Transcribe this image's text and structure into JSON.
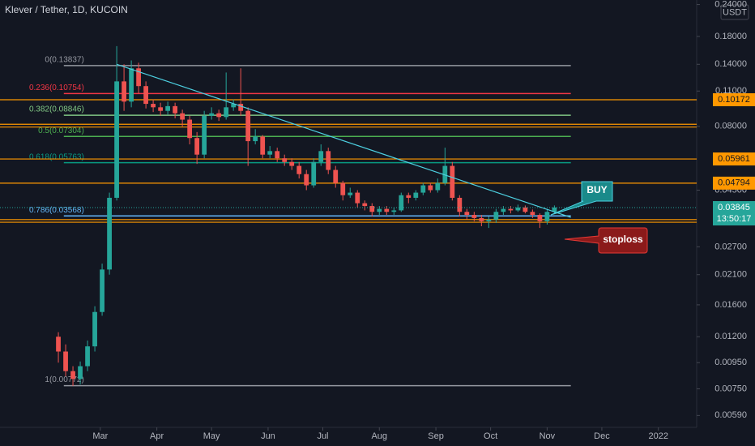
{
  "chart_data": {
    "type": "candlestick",
    "title": "Klever / Tether, 1D, KUCOIN",
    "currency": "USDT",
    "log_scale": true,
    "grid": false,
    "up_color": "#26a69a",
    "down_color": "#ef5350",
    "xlim": [
      4,
      386
    ],
    "xticks": [
      {
        "value": 59,
        "label": "Mar"
      },
      {
        "value": 90,
        "label": "Apr"
      },
      {
        "value": 120,
        "label": "May"
      },
      {
        "value": 151,
        "label": "Jun"
      },
      {
        "value": 181,
        "label": "Jul"
      },
      {
        "value": 212,
        "label": "Aug"
      },
      {
        "value": 243,
        "label": "Sep"
      },
      {
        "value": 273,
        "label": "Oct"
      },
      {
        "value": 304,
        "label": "Nov"
      },
      {
        "value": 334,
        "label": "Dec"
      },
      {
        "value": 365,
        "label": "2022"
      }
    ],
    "ylim": [
      0.0053,
      0.25
    ],
    "yticks": [
      {
        "value": 0.24,
        "label": "0.24000"
      },
      {
        "value": 0.18,
        "label": "0.18000"
      },
      {
        "value": 0.14,
        "label": "0.14000"
      },
      {
        "value": 0.11,
        "label": "0.11000"
      },
      {
        "value": 0.08,
        "label": "0.08000"
      },
      {
        "value": 0.045,
        "label": "0.04500"
      },
      {
        "value": 0.027,
        "label": "0.02700"
      },
      {
        "value": 0.021,
        "label": "0.02100"
      },
      {
        "value": 0.016,
        "label": "0.01600"
      },
      {
        "value": 0.012,
        "label": "0.01200"
      },
      {
        "value": 0.0095,
        "label": "0.00950"
      },
      {
        "value": 0.0075,
        "label": "0.00750"
      },
      {
        "value": 0.0059,
        "label": "0.00590"
      }
    ],
    "x": [
      36,
      40,
      44,
      48,
      52,
      56,
      60,
      64,
      68,
      72,
      76,
      80,
      84,
      88,
      92,
      96,
      100,
      104,
      108,
      112,
      116,
      120,
      124,
      128,
      132,
      136,
      140,
      144,
      148,
      152,
      156,
      160,
      164,
      168,
      172,
      176,
      180,
      184,
      188,
      192,
      196,
      200,
      204,
      208,
      212,
      216,
      220,
      224,
      228,
      232,
      236,
      240,
      244,
      248,
      252,
      256,
      260,
      264,
      268,
      272,
      276,
      280,
      284,
      288,
      292,
      296,
      300,
      304,
      308
    ],
    "open": [
      0.012,
      0.0105,
      0.0088,
      0.0082,
      0.0092,
      0.011,
      0.015,
      0.022,
      0.042,
      0.12,
      0.1,
      0.135,
      0.115,
      0.098,
      0.095,
      0.092,
      0.096,
      0.09,
      0.085,
      0.072,
      0.062,
      0.088,
      0.09,
      0.087,
      0.095,
      0.098,
      0.092,
      0.07,
      0.073,
      0.062,
      0.064,
      0.06,
      0.058,
      0.056,
      0.052,
      0.047,
      0.058,
      0.064,
      0.054,
      0.048,
      0.043,
      0.044,
      0.04,
      0.039,
      0.037,
      0.038,
      0.037,
      0.0375,
      0.043,
      0.042,
      0.044,
      0.047,
      0.045,
      0.048,
      0.056,
      0.042,
      0.037,
      0.036,
      0.035,
      0.034,
      0.0345,
      0.037,
      0.038,
      0.0375,
      0.0385,
      0.037,
      0.036,
      0.034,
      0.037
    ],
    "high": [
      0.0125,
      0.0112,
      0.0092,
      0.0096,
      0.0116,
      0.0158,
      0.0232,
      0.044,
      0.165,
      0.14,
      0.145,
      0.142,
      0.12,
      0.102,
      0.099,
      0.1,
      0.099,
      0.093,
      0.088,
      0.076,
      0.092,
      0.095,
      0.093,
      0.13,
      0.102,
      0.135,
      0.095,
      0.078,
      0.074,
      0.067,
      0.066,
      0.062,
      0.06,
      0.058,
      0.054,
      0.06,
      0.068,
      0.066,
      0.056,
      0.049,
      0.046,
      0.045,
      0.041,
      0.04,
      0.039,
      0.039,
      0.0385,
      0.044,
      0.044,
      0.045,
      0.048,
      0.048,
      0.05,
      0.066,
      0.058,
      0.043,
      0.038,
      0.037,
      0.036,
      0.0355,
      0.038,
      0.039,
      0.039,
      0.0395,
      0.0392,
      0.0378,
      0.0365,
      0.0378,
      0.0392
    ],
    "low": [
      0.0095,
      0.0084,
      0.0077,
      0.0078,
      0.0088,
      0.0105,
      0.0145,
      0.021,
      0.041,
      0.092,
      0.095,
      0.108,
      0.094,
      0.091,
      0.088,
      0.089,
      0.086,
      0.08,
      0.068,
      0.057,
      0.06,
      0.085,
      0.084,
      0.085,
      0.092,
      0.088,
      0.056,
      0.068,
      0.06,
      0.06,
      0.058,
      0.056,
      0.054,
      0.05,
      0.045,
      0.046,
      0.056,
      0.052,
      0.046,
      0.041,
      0.042,
      0.0385,
      0.0375,
      0.0355,
      0.036,
      0.036,
      0.036,
      0.037,
      0.04,
      0.041,
      0.043,
      0.044,
      0.044,
      0.047,
      0.041,
      0.0355,
      0.0345,
      0.034,
      0.0325,
      0.032,
      0.0335,
      0.036,
      0.0365,
      0.037,
      0.0365,
      0.035,
      0.032,
      0.033,
      0.0365
    ],
    "close": [
      0.0105,
      0.0088,
      0.0082,
      0.0092,
      0.011,
      0.015,
      0.022,
      0.042,
      0.12,
      0.1,
      0.135,
      0.115,
      0.098,
      0.095,
      0.092,
      0.096,
      0.09,
      0.085,
      0.072,
      0.062,
      0.088,
      0.09,
      0.087,
      0.095,
      0.098,
      0.092,
      0.07,
      0.073,
      0.062,
      0.064,
      0.06,
      0.058,
      0.056,
      0.052,
      0.047,
      0.058,
      0.064,
      0.054,
      0.048,
      0.043,
      0.044,
      0.04,
      0.039,
      0.037,
      0.038,
      0.037,
      0.0375,
      0.043,
      0.042,
      0.044,
      0.047,
      0.045,
      0.048,
      0.056,
      0.042,
      0.037,
      0.036,
      0.035,
      0.034,
      0.0345,
      0.037,
      0.038,
      0.0375,
      0.0385,
      0.037,
      0.036,
      0.034,
      0.037,
      0.0385
    ],
    "fib": {
      "x": [
        39,
        317
      ],
      "levels": [
        {
          "label": "0(0.13837)",
          "value": 0.13837,
          "color": "#9598a1"
        },
        {
          "label": "0.236(0.10754)",
          "value": 0.10754,
          "color": "#f23645"
        },
        {
          "label": "0.382(0.08846)",
          "value": 0.08846,
          "color": "#81c784"
        },
        {
          "label": "0.5(0.07304)",
          "value": 0.07304,
          "color": "#4caf50"
        },
        {
          "label": "0.618(0.05763)",
          "value": 0.05763,
          "color": "#089981"
        },
        {
          "label": "0.786(0.03568)",
          "value": 0.03568,
          "color": "#64b5f6"
        },
        {
          "label": "1(0.00772)",
          "value": 0.00772,
          "color": "#9598a1"
        }
      ]
    },
    "level_color": "#ff9800",
    "horizontal_levels": [
      0.10172,
      0.05961,
      0.04794
    ],
    "support_lines": [
      0.0815,
      0.0795,
      0.0345,
      0.0337
    ],
    "trendline": {
      "x": [
        68,
        317
      ],
      "values": [
        0.14,
        0.0352
      ],
      "color": "#4dd0e1"
    },
    "last_price": 0.03845,
    "countdown": "13:50:17",
    "annotations": [
      {
        "text": "BUY",
        "color": "#1a8a8a"
      },
      {
        "text": "stoploss",
        "color": "#8b1a1a"
      }
    ]
  }
}
